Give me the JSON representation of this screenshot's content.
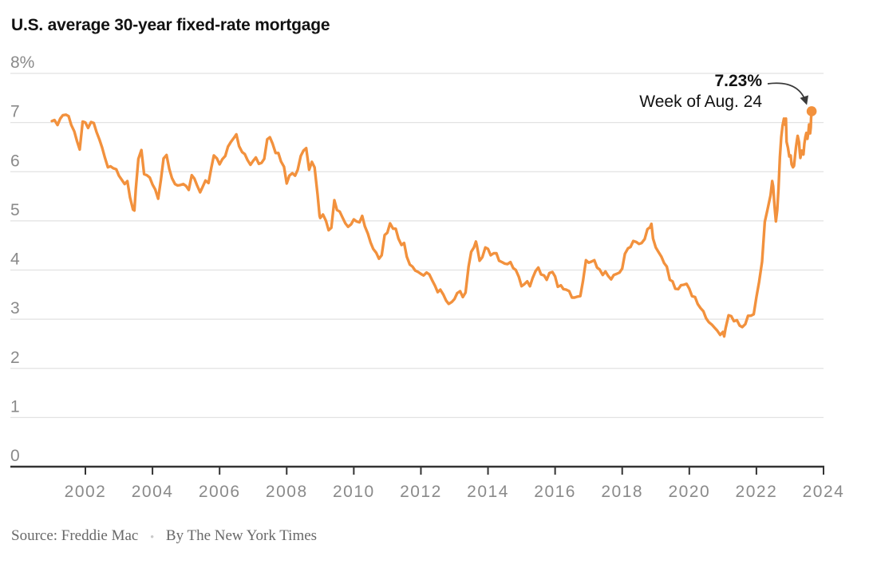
{
  "title": "U.S. average 30-year fixed-rate mortgage",
  "annotation": {
    "value_label": "7.23%",
    "week_label": "Week of Aug. 24"
  },
  "footer": {
    "source": "Source: Freddie Mac",
    "bullet": "•",
    "byline": "By The New York Times"
  },
  "colors": {
    "line": "#F2913D",
    "grid": "#E2E2E2",
    "axis": "#333333",
    "tick_label": "#8A8A8A",
    "text": "#121212",
    "arrow": "#3A3A3A"
  },
  "chart_data": {
    "type": "line",
    "title": "U.S. average 30-year fixed-rate mortgage",
    "unit": "percent",
    "xlabel": "",
    "ylabel": "",
    "xlim": [
      2001,
      2024
    ],
    "ylim": [
      0,
      8
    ],
    "grid": "horizontal",
    "legend": "none",
    "x_ticks": [
      2002,
      2004,
      2006,
      2008,
      2010,
      2012,
      2014,
      2016,
      2018,
      2020,
      2022,
      2024
    ],
    "y_ticks": [
      {
        "value": 8,
        "label": "8%"
      },
      {
        "value": 7,
        "label": "7"
      },
      {
        "value": 6,
        "label": "6"
      },
      {
        "value": 5,
        "label": "5"
      },
      {
        "value": 4,
        "label": "4"
      },
      {
        "value": 3,
        "label": "3"
      },
      {
        "value": 2,
        "label": "2"
      },
      {
        "value": 1,
        "label": "1"
      },
      {
        "value": 0,
        "label": "0"
      }
    ],
    "end_point": {
      "x": 2023.646,
      "y": 7.23,
      "label": "7.23%",
      "sublabel": "Week of Aug. 24"
    },
    "series_name": "30-year fixed-rate mortgage average",
    "points": [
      [
        2001.0,
        7.03
      ],
      [
        2001.08,
        7.05
      ],
      [
        2001.17,
        6.95
      ],
      [
        2001.25,
        7.08
      ],
      [
        2001.33,
        7.15
      ],
      [
        2001.42,
        7.16
      ],
      [
        2001.5,
        7.13
      ],
      [
        2001.58,
        6.95
      ],
      [
        2001.67,
        6.82
      ],
      [
        2001.75,
        6.62
      ],
      [
        2001.83,
        6.45
      ],
      [
        2001.92,
        7.02
      ],
      [
        2002.0,
        7.0
      ],
      [
        2002.08,
        6.89
      ],
      [
        2002.17,
        7.01
      ],
      [
        2002.25,
        6.99
      ],
      [
        2002.33,
        6.81
      ],
      [
        2002.42,
        6.65
      ],
      [
        2002.5,
        6.49
      ],
      [
        2002.58,
        6.29
      ],
      [
        2002.67,
        6.09
      ],
      [
        2002.75,
        6.11
      ],
      [
        2002.83,
        6.07
      ],
      [
        2002.92,
        6.05
      ],
      [
        2003.0,
        5.92
      ],
      [
        2003.08,
        5.84
      ],
      [
        2003.17,
        5.75
      ],
      [
        2003.25,
        5.81
      ],
      [
        2003.33,
        5.48
      ],
      [
        2003.42,
        5.23
      ],
      [
        2003.46,
        5.21
      ],
      [
        2003.5,
        5.63
      ],
      [
        2003.58,
        6.26
      ],
      [
        2003.67,
        6.44
      ],
      [
        2003.75,
        5.95
      ],
      [
        2003.83,
        5.93
      ],
      [
        2003.92,
        5.88
      ],
      [
        2004.0,
        5.74
      ],
      [
        2004.08,
        5.64
      ],
      [
        2004.17,
        5.45
      ],
      [
        2004.25,
        5.83
      ],
      [
        2004.33,
        6.27
      ],
      [
        2004.42,
        6.34
      ],
      [
        2004.5,
        6.06
      ],
      [
        2004.58,
        5.87
      ],
      [
        2004.67,
        5.75
      ],
      [
        2004.75,
        5.72
      ],
      [
        2004.83,
        5.73
      ],
      [
        2004.92,
        5.75
      ],
      [
        2005.0,
        5.71
      ],
      [
        2005.08,
        5.63
      ],
      [
        2005.17,
        5.93
      ],
      [
        2005.25,
        5.86
      ],
      [
        2005.33,
        5.72
      ],
      [
        2005.42,
        5.58
      ],
      [
        2005.5,
        5.7
      ],
      [
        2005.58,
        5.82
      ],
      [
        2005.67,
        5.77
      ],
      [
        2005.75,
        6.07
      ],
      [
        2005.83,
        6.33
      ],
      [
        2005.92,
        6.27
      ],
      [
        2006.0,
        6.15
      ],
      [
        2006.08,
        6.25
      ],
      [
        2006.17,
        6.32
      ],
      [
        2006.25,
        6.51
      ],
      [
        2006.33,
        6.6
      ],
      [
        2006.42,
        6.68
      ],
      [
        2006.5,
        6.76
      ],
      [
        2006.58,
        6.52
      ],
      [
        2006.67,
        6.4
      ],
      [
        2006.75,
        6.36
      ],
      [
        2006.83,
        6.24
      ],
      [
        2006.92,
        6.14
      ],
      [
        2007.0,
        6.22
      ],
      [
        2007.08,
        6.29
      ],
      [
        2007.17,
        6.16
      ],
      [
        2007.25,
        6.18
      ],
      [
        2007.33,
        6.26
      ],
      [
        2007.42,
        6.66
      ],
      [
        2007.5,
        6.7
      ],
      [
        2007.58,
        6.57
      ],
      [
        2007.67,
        6.38
      ],
      [
        2007.75,
        6.38
      ],
      [
        2007.83,
        6.21
      ],
      [
        2007.92,
        6.1
      ],
      [
        2008.0,
        5.76
      ],
      [
        2008.08,
        5.92
      ],
      [
        2008.17,
        5.97
      ],
      [
        2008.25,
        5.92
      ],
      [
        2008.33,
        6.04
      ],
      [
        2008.42,
        6.32
      ],
      [
        2008.5,
        6.43
      ],
      [
        2008.58,
        6.48
      ],
      [
        2008.67,
        6.04
      ],
      [
        2008.75,
        6.2
      ],
      [
        2008.83,
        6.09
      ],
      [
        2008.92,
        5.53
      ],
      [
        2008.98,
        5.1
      ],
      [
        2009.0,
        5.06
      ],
      [
        2009.08,
        5.13
      ],
      [
        2009.17,
        5.0
      ],
      [
        2009.25,
        4.81
      ],
      [
        2009.33,
        4.86
      ],
      [
        2009.42,
        5.42
      ],
      [
        2009.5,
        5.22
      ],
      [
        2009.58,
        5.19
      ],
      [
        2009.67,
        5.06
      ],
      [
        2009.75,
        4.95
      ],
      [
        2009.83,
        4.88
      ],
      [
        2009.92,
        4.93
      ],
      [
        2010.0,
        5.03
      ],
      [
        2010.08,
        4.99
      ],
      [
        2010.17,
        4.97
      ],
      [
        2010.25,
        5.1
      ],
      [
        2010.33,
        4.89
      ],
      [
        2010.42,
        4.74
      ],
      [
        2010.5,
        4.56
      ],
      [
        2010.58,
        4.43
      ],
      [
        2010.67,
        4.35
      ],
      [
        2010.75,
        4.23
      ],
      [
        2010.83,
        4.3
      ],
      [
        2010.92,
        4.71
      ],
      [
        2011.0,
        4.76
      ],
      [
        2011.08,
        4.95
      ],
      [
        2011.17,
        4.84
      ],
      [
        2011.25,
        4.84
      ],
      [
        2011.33,
        4.64
      ],
      [
        2011.42,
        4.51
      ],
      [
        2011.5,
        4.55
      ],
      [
        2011.58,
        4.27
      ],
      [
        2011.67,
        4.11
      ],
      [
        2011.75,
        4.07
      ],
      [
        2011.83,
        3.99
      ],
      [
        2011.92,
        3.96
      ],
      [
        2012.0,
        3.92
      ],
      [
        2012.08,
        3.89
      ],
      [
        2012.17,
        3.95
      ],
      [
        2012.25,
        3.91
      ],
      [
        2012.33,
        3.8
      ],
      [
        2012.42,
        3.68
      ],
      [
        2012.5,
        3.55
      ],
      [
        2012.58,
        3.6
      ],
      [
        2012.67,
        3.5
      ],
      [
        2012.75,
        3.38
      ],
      [
        2012.83,
        3.31
      ],
      [
        2012.92,
        3.35
      ],
      [
        2013.0,
        3.41
      ],
      [
        2013.08,
        3.53
      ],
      [
        2013.17,
        3.57
      ],
      [
        2013.25,
        3.45
      ],
      [
        2013.33,
        3.54
      ],
      [
        2013.42,
        4.07
      ],
      [
        2013.5,
        4.37
      ],
      [
        2013.58,
        4.46
      ],
      [
        2013.64,
        4.58
      ],
      [
        2013.67,
        4.49
      ],
      [
        2013.75,
        4.19
      ],
      [
        2013.83,
        4.26
      ],
      [
        2013.92,
        4.46
      ],
      [
        2014.0,
        4.43
      ],
      [
        2014.08,
        4.3
      ],
      [
        2014.17,
        4.34
      ],
      [
        2014.25,
        4.34
      ],
      [
        2014.33,
        4.19
      ],
      [
        2014.42,
        4.16
      ],
      [
        2014.5,
        4.13
      ],
      [
        2014.58,
        4.12
      ],
      [
        2014.67,
        4.16
      ],
      [
        2014.75,
        4.04
      ],
      [
        2014.83,
        4.0
      ],
      [
        2014.92,
        3.86
      ],
      [
        2015.0,
        3.67
      ],
      [
        2015.08,
        3.71
      ],
      [
        2015.17,
        3.77
      ],
      [
        2015.25,
        3.67
      ],
      [
        2015.33,
        3.84
      ],
      [
        2015.42,
        3.98
      ],
      [
        2015.5,
        4.05
      ],
      [
        2015.58,
        3.91
      ],
      [
        2015.67,
        3.89
      ],
      [
        2015.75,
        3.8
      ],
      [
        2015.83,
        3.94
      ],
      [
        2015.92,
        3.96
      ],
      [
        2016.0,
        3.87
      ],
      [
        2016.08,
        3.66
      ],
      [
        2016.17,
        3.69
      ],
      [
        2016.25,
        3.61
      ],
      [
        2016.33,
        3.6
      ],
      [
        2016.42,
        3.57
      ],
      [
        2016.5,
        3.44
      ],
      [
        2016.58,
        3.44
      ],
      [
        2016.67,
        3.46
      ],
      [
        2016.75,
        3.47
      ],
      [
        2016.83,
        3.77
      ],
      [
        2016.92,
        4.2
      ],
      [
        2017.0,
        4.15
      ],
      [
        2017.08,
        4.17
      ],
      [
        2017.17,
        4.2
      ],
      [
        2017.25,
        4.05
      ],
      [
        2017.33,
        4.01
      ],
      [
        2017.42,
        3.9
      ],
      [
        2017.5,
        3.97
      ],
      [
        2017.58,
        3.88
      ],
      [
        2017.67,
        3.81
      ],
      [
        2017.75,
        3.9
      ],
      [
        2017.83,
        3.92
      ],
      [
        2017.92,
        3.95
      ],
      [
        2018.0,
        4.03
      ],
      [
        2018.08,
        4.33
      ],
      [
        2018.17,
        4.44
      ],
      [
        2018.25,
        4.47
      ],
      [
        2018.33,
        4.59
      ],
      [
        2018.42,
        4.57
      ],
      [
        2018.5,
        4.53
      ],
      [
        2018.58,
        4.55
      ],
      [
        2018.67,
        4.63
      ],
      [
        2018.75,
        4.83
      ],
      [
        2018.83,
        4.87
      ],
      [
        2018.87,
        4.94
      ],
      [
        2018.92,
        4.64
      ],
      [
        2019.0,
        4.46
      ],
      [
        2019.08,
        4.37
      ],
      [
        2019.17,
        4.27
      ],
      [
        2019.25,
        4.14
      ],
      [
        2019.33,
        4.07
      ],
      [
        2019.42,
        3.8
      ],
      [
        2019.5,
        3.77
      ],
      [
        2019.58,
        3.62
      ],
      [
        2019.67,
        3.61
      ],
      [
        2019.75,
        3.69
      ],
      [
        2019.83,
        3.7
      ],
      [
        2019.92,
        3.72
      ],
      [
        2020.0,
        3.62
      ],
      [
        2020.08,
        3.47
      ],
      [
        2020.17,
        3.45
      ],
      [
        2020.25,
        3.31
      ],
      [
        2020.33,
        3.23
      ],
      [
        2020.42,
        3.16
      ],
      [
        2020.5,
        3.02
      ],
      [
        2020.58,
        2.94
      ],
      [
        2020.67,
        2.89
      ],
      [
        2020.75,
        2.83
      ],
      [
        2020.83,
        2.77
      ],
      [
        2020.92,
        2.68
      ],
      [
        2021.0,
        2.74
      ],
      [
        2021.04,
        2.65
      ],
      [
        2021.08,
        2.81
      ],
      [
        2021.17,
        3.08
      ],
      [
        2021.25,
        3.06
      ],
      [
        2021.33,
        2.96
      ],
      [
        2021.42,
        2.98
      ],
      [
        2021.5,
        2.87
      ],
      [
        2021.58,
        2.84
      ],
      [
        2021.67,
        2.9
      ],
      [
        2021.75,
        3.07
      ],
      [
        2021.83,
        3.07
      ],
      [
        2021.92,
        3.1
      ],
      [
        2022.0,
        3.45
      ],
      [
        2022.08,
        3.76
      ],
      [
        2022.17,
        4.17
      ],
      [
        2022.25,
        4.98
      ],
      [
        2022.33,
        5.23
      ],
      [
        2022.42,
        5.52
      ],
      [
        2022.47,
        5.81
      ],
      [
        2022.5,
        5.7
      ],
      [
        2022.54,
        5.3
      ],
      [
        2022.58,
        4.99
      ],
      [
        2022.62,
        5.22
      ],
      [
        2022.66,
        5.66
      ],
      [
        2022.7,
        6.29
      ],
      [
        2022.74,
        6.7
      ],
      [
        2022.78,
        6.94
      ],
      [
        2022.82,
        7.08
      ],
      [
        2022.86,
        6.95
      ],
      [
        2022.88,
        7.08
      ],
      [
        2022.9,
        6.61
      ],
      [
        2022.94,
        6.49
      ],
      [
        2022.98,
        6.31
      ],
      [
        2023.02,
        6.33
      ],
      [
        2023.05,
        6.15
      ],
      [
        2023.09,
        6.09
      ],
      [
        2023.12,
        6.12
      ],
      [
        2023.15,
        6.32
      ],
      [
        2023.18,
        6.5
      ],
      [
        2023.21,
        6.65
      ],
      [
        2023.23,
        6.73
      ],
      [
        2023.27,
        6.6
      ],
      [
        2023.29,
        6.42
      ],
      [
        2023.31,
        6.28
      ],
      [
        2023.35,
        6.43
      ],
      [
        2023.38,
        6.39
      ],
      [
        2023.4,
        6.35
      ],
      [
        2023.43,
        6.57
      ],
      [
        2023.46,
        6.71
      ],
      [
        2023.49,
        6.79
      ],
      [
        2023.52,
        6.67
      ],
      [
        2023.55,
        6.81
      ],
      [
        2023.57,
        6.96
      ],
      [
        2023.6,
        6.78
      ],
      [
        2023.62,
        6.9
      ],
      [
        2023.63,
        7.09
      ],
      [
        2023.646,
        7.23
      ]
    ]
  }
}
